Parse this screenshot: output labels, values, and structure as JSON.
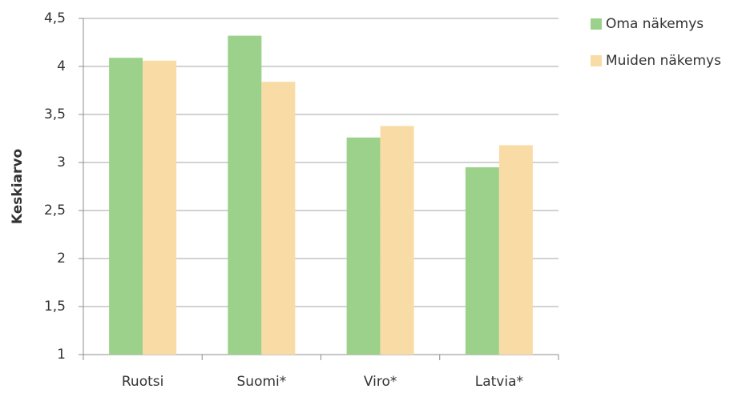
{
  "chart_data": {
    "type": "bar",
    "y_label": "Keskiarvo",
    "categories": [
      "Ruotsi",
      "Suomi*",
      "Viro*",
      "Latvia*"
    ],
    "series": [
      {
        "name": "Oma näkemys",
        "color": "#9bd18b",
        "values": [
          4.09,
          4.32,
          3.26,
          2.95
        ]
      },
      {
        "name": "Muiden näkemys",
        "color": "#f9dba6",
        "values": [
          4.06,
          3.84,
          3.38,
          3.18
        ]
      }
    ],
    "ylim": [
      1,
      4.5
    ],
    "yticks": [
      1,
      {
        "value": 1.5,
        "label": "1,5"
      },
      2,
      {
        "value": 2.5,
        "label": "2,5"
      },
      3,
      {
        "value": 3.5,
        "label": "3,5"
      },
      4,
      {
        "value": 4.5,
        "label": "4,5"
      }
    ],
    "grid": true,
    "legend": "right"
  }
}
